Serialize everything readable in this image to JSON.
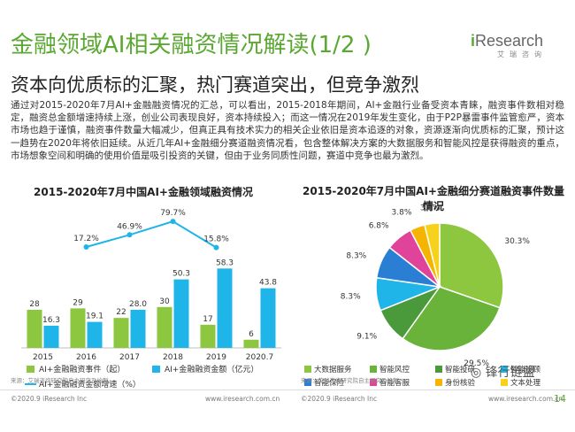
{
  "header": {
    "title": "金融领域AI相关融资情况解读(1/2 )",
    "subtitle": "资本向优质标的汇聚，热门赛道突出，但竞争激烈",
    "logo": {
      "main": "iResearch",
      "sub": "艾瑞咨询"
    }
  },
  "body_text": "通过对2015-2020年7月AI+金融融资情况的汇总，可以看出，2015-2018年期间，AI+金融行业备受资本青睐，融资事件数相对稳定，融资总金额增速持续上涨，创业公司表现良好，资本持续投入；而这一情况在2019年发生变化，由于P2P暴雷事件监管愈严，资本市场也趋于谨慎，融资事件数量大幅减少，但真正具有技术实力的相关企业依旧是资本追逐的对象，资源逐渐向优质标的汇聚，预计这一趋势在2020年将依旧延续。从近几年AI+金融细分赛道融资情况看，包含整体解决方案的大数据服务和智能风控是获得融资的重点，市场想象空间和明确的使用价值是吸引投资的关键，但由于业务同质性问题，赛道中竞争也最为激烈。",
  "colors": {
    "accent": "#5aa832",
    "events": "#8dc63f",
    "amount": "#1fb5e8",
    "growth": "#1fb5e8"
  },
  "chart_data": [
    {
      "type": "bar",
      "title": "2015-2020年7月中国AI+金融领域融资情况",
      "categories": [
        "2015",
        "2016",
        "2017",
        "2018",
        "2019",
        "2020.7"
      ],
      "series": [
        {
          "name": "AI+金融融资事件（起）",
          "values": [
            28,
            29,
            22,
            30,
            17,
            6
          ],
          "labels": [
            "28",
            "29",
            "22",
            "30",
            "17",
            "6"
          ]
        },
        {
          "name": "AI+金融融资金额（亿元）",
          "values": [
            16.3,
            19.1,
            28.0,
            50.3,
            58.3,
            43.8
          ],
          "labels": [
            "16.3",
            "19.1",
            "28.0",
            "50.3",
            "58.3",
            "43.8"
          ]
        },
        {
          "name": "AI+金融融资金额增速（%）",
          "type": "line",
          "x": [
            "2016",
            "2017",
            "2018",
            "2019"
          ],
          "values": [
            17.2,
            46.9,
            79.7,
            15.8
          ],
          "labels": [
            "17.2%",
            "46.9%",
            "79.7%",
            "15.8%"
          ]
        }
      ],
      "source": "来源：艾瑞咨询研究院自主研究及绘制。"
    },
    {
      "type": "pie",
      "title": "2015-2020年7月中国AI+金融细分赛道融资事件数量情况",
      "slices": [
        {
          "name": "大数据服务",
          "value": 30.3,
          "label": "30.3%",
          "color": "#8dc63f"
        },
        {
          "name": "智能风控",
          "value": 29.5,
          "label": "29.5%",
          "color": "#6ab33a"
        },
        {
          "name": "智能投研",
          "value": 9.1,
          "label": "9.1%",
          "color": "#4a9a3b"
        },
        {
          "name": "智能投顾",
          "value": 8.3,
          "label": "8.3%",
          "color": "#1fb5e8"
        },
        {
          "name": "智能保险",
          "value": 8.3,
          "label": "8.3%",
          "color": "#2a7fd4"
        },
        {
          "name": "智能客服",
          "value": 6.8,
          "label": "6.8%",
          "color": "#e0449a"
        },
        {
          "name": "身份核验",
          "value": 3.8,
          "label": "3.8%",
          "color": "#f4b400"
        },
        {
          "name": "文本处理",
          "value": 3.8,
          "label": "3.8%",
          "color": "#f7d21c"
        }
      ],
      "legend_order": [
        "大数据服务",
        "智能风控",
        "智能投研",
        "智能投顾",
        "智能保险",
        "智能客服",
        "身份核验",
        "文本处理"
      ],
      "source": "来源：艾瑞咨询研究院自主研究及绘制。"
    }
  ],
  "footer": {
    "left": "©2020.9 iResearch Inc",
    "center_left": "www.iresearch.com.cn",
    "center_right": "©2020.9 iResearch Inc",
    "right": "www.iresearch.com.cn",
    "page": "14",
    "wechat": "锋行链盟"
  }
}
